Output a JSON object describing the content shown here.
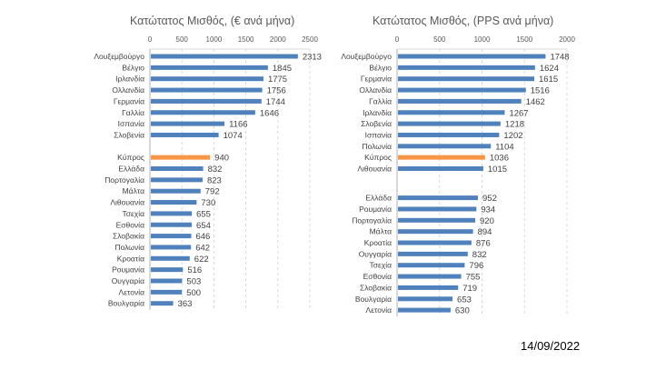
{
  "chart_data": [
    {
      "type": "bar",
      "orientation": "horizontal",
      "title": "Κατώτατος Μισθός, (€ ανά μήνα)",
      "xlim": [
        0,
        2500
      ],
      "xticks": [
        0,
        500,
        1000,
        1500,
        2000,
        2500
      ],
      "grid": true,
      "groups": [
        {
          "categories": [
            "Λουξεμβούργο",
            "Βέλγιο",
            "Ιρλανδία",
            "Ολλανδία",
            "Γερμανία",
            "Γαλλία",
            "Ισπανία",
            "Σλοβενία"
          ],
          "values": [
            2313,
            1845,
            1775,
            1756,
            1744,
            1646,
            1166,
            1074
          ]
        },
        {
          "categories": [
            "Κύπρος",
            "Ελλάδα",
            "Πορτογαλία",
            "Μάλτα",
            "Λιθουανία",
            "Τσεχία",
            "Εσθονία",
            "Σλοβακία",
            "Πολωνία",
            "Κροατία",
            "Ρουμανία",
            "Ουγγαρία",
            "Λετονία",
            "Βουλγαρία"
          ],
          "values": [
            940,
            832,
            823,
            792,
            730,
            655,
            654,
            646,
            642,
            622,
            516,
            503,
            500,
            363
          ]
        }
      ],
      "highlight": "Κύπρος",
      "colors": {
        "bar": "#4f81bd",
        "highlight": "#f79646"
      }
    },
    {
      "type": "bar",
      "orientation": "horizontal",
      "title": "Κατώτατος Μισθός, (PPS ανά μήνα)",
      "xlim": [
        0,
        2000
      ],
      "xticks": [
        0,
        500,
        1000,
        1500,
        2000
      ],
      "grid": true,
      "groups": [
        {
          "categories": [
            "Λουξεμβούργο",
            "Βέλγιο",
            "Γερμανία",
            "Ολλανδία",
            "Γαλλία",
            "Ιρλανδία",
            "Σλοβενία",
            "Ισπανία",
            "Πολωνία",
            "Κύπρος",
            "Λιθουανία"
          ],
          "values": [
            1748,
            1624,
            1615,
            1516,
            1462,
            1267,
            1218,
            1202,
            1104,
            1036,
            1015
          ]
        },
        {
          "categories": [
            "Ελλάδα",
            "Ρουμανία",
            "Πορτογαλία",
            "Μάλτα",
            "Κροατία",
            "Ουγγαρία",
            "Τσεχία",
            "Εσθονία",
            "Σλοβακία",
            "Βουλγαρία",
            "Λετονία"
          ],
          "values": [
            952,
            934,
            920,
            894,
            876,
            832,
            796,
            755,
            719,
            653,
            630
          ]
        }
      ],
      "highlight": "Κύπρος",
      "colors": {
        "bar": "#4f81bd",
        "highlight": "#f79646"
      }
    }
  ],
  "footer": {
    "date": "14/09/2022"
  }
}
